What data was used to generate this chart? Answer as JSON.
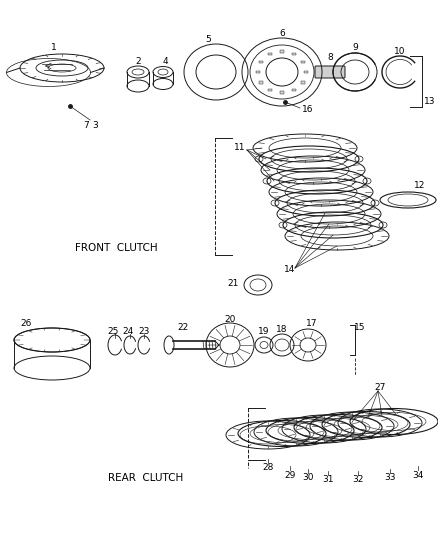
{
  "background_color": "#ffffff",
  "line_color": "#1a1a1a",
  "font_size_labels": 6.5,
  "font_size_section": 7.5,
  "front_clutch_label": "FRONT  CLUTCH",
  "rear_clutch_label": "REAR  CLUTCH",
  "figsize": [
    4.38,
    5.33
  ],
  "dpi": 100
}
